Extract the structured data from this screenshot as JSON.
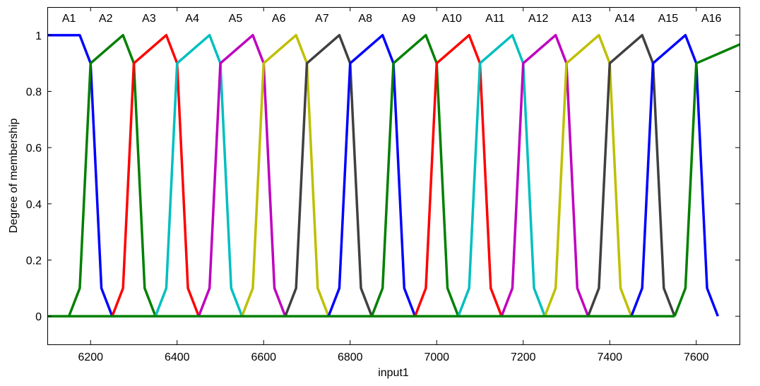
{
  "chart_data": {
    "type": "line",
    "xlabel": "input1",
    "ylabel": "Degree of membership",
    "xlim": [
      6100,
      7700
    ],
    "ylim": [
      -0.1,
      1.1
    ],
    "x_ticks": [
      6200,
      6400,
      6600,
      6800,
      7000,
      7200,
      7400,
      7600
    ],
    "y_ticks": [
      0,
      0.2,
      0.4,
      0.6,
      0.8,
      1
    ],
    "grid": false,
    "series": [
      {
        "name": "A1",
        "color": "#0000ff",
        "x": [
          6050,
          6175,
          6200,
          6225,
          6250
        ],
        "y": [
          1,
          1,
          0.9,
          0.1,
          0
        ]
      },
      {
        "name": "A2",
        "color": "#008000",
        "x": [
          6150,
          6175,
          6200,
          6275,
          6300,
          6325,
          6350
        ],
        "y": [
          0,
          0.1,
          0.9,
          1,
          0.9,
          0.1,
          0
        ]
      },
      {
        "name": "A3",
        "color": "#ff0000",
        "x": [
          6250,
          6275,
          6300,
          6375,
          6400,
          6425,
          6450
        ],
        "y": [
          0,
          0.1,
          0.9,
          1,
          0.9,
          0.1,
          0
        ]
      },
      {
        "name": "A4",
        "color": "#00bfbf",
        "x": [
          6350,
          6375,
          6400,
          6475,
          6500,
          6525,
          6550
        ],
        "y": [
          0,
          0.1,
          0.9,
          1,
          0.9,
          0.1,
          0
        ]
      },
      {
        "name": "A5",
        "color": "#bf00bf",
        "x": [
          6450,
          6475,
          6500,
          6575,
          6600,
          6625,
          6650
        ],
        "y": [
          0,
          0.1,
          0.9,
          1,
          0.9,
          0.1,
          0
        ]
      },
      {
        "name": "A6",
        "color": "#bfbf00",
        "x": [
          6550,
          6575,
          6600,
          6675,
          6700,
          6725,
          6750
        ],
        "y": [
          0,
          0.1,
          0.9,
          1,
          0.9,
          0.1,
          0
        ]
      },
      {
        "name": "A7",
        "color": "#404040",
        "x": [
          6650,
          6675,
          6700,
          6775,
          6800,
          6825,
          6850
        ],
        "y": [
          0,
          0.1,
          0.9,
          1,
          0.9,
          0.1,
          0
        ]
      },
      {
        "name": "A8",
        "color": "#0000ff",
        "x": [
          6750,
          6775,
          6800,
          6875,
          6900,
          6925,
          6950
        ],
        "y": [
          0,
          0.1,
          0.9,
          1,
          0.9,
          0.1,
          0
        ]
      },
      {
        "name": "A9",
        "color": "#008000",
        "x": [
          6850,
          6875,
          6900,
          6975,
          7000,
          7025,
          7050
        ],
        "y": [
          0,
          0.1,
          0.9,
          1,
          0.9,
          0.1,
          0
        ]
      },
      {
        "name": "A10",
        "color": "#ff0000",
        "x": [
          6950,
          6975,
          7000,
          7075,
          7100,
          7125,
          7150
        ],
        "y": [
          0,
          0.1,
          0.9,
          1,
          0.9,
          0.1,
          0
        ]
      },
      {
        "name": "A11",
        "color": "#00bfbf",
        "x": [
          7050,
          7075,
          7100,
          7175,
          7200,
          7225,
          7250
        ],
        "y": [
          0,
          0.1,
          0.9,
          1,
          0.9,
          0.1,
          0
        ]
      },
      {
        "name": "A12",
        "color": "#bf00bf",
        "x": [
          7150,
          7175,
          7200,
          7275,
          7300,
          7325,
          7350
        ],
        "y": [
          0,
          0.1,
          0.9,
          1,
          0.9,
          0.1,
          0
        ]
      },
      {
        "name": "A13",
        "color": "#bfbf00",
        "x": [
          7250,
          7275,
          7300,
          7375,
          7400,
          7425,
          7450
        ],
        "y": [
          0,
          0.1,
          0.9,
          1,
          0.9,
          0.1,
          0
        ]
      },
      {
        "name": "A14",
        "color": "#404040",
        "x": [
          7350,
          7375,
          7400,
          7475,
          7500,
          7525,
          7550
        ],
        "y": [
          0,
          0.1,
          0.9,
          1,
          0.9,
          0.1,
          0
        ]
      },
      {
        "name": "A15",
        "color": "#0000ff",
        "x": [
          7450,
          7475,
          7500,
          7575,
          7600,
          7625,
          7650
        ],
        "y": [
          0,
          0.1,
          0.9,
          1,
          0.9,
          0.1,
          0
        ]
      },
      {
        "name": "A16",
        "color": "#008000",
        "x": [
          7550,
          7575,
          7600,
          7750
        ],
        "y": [
          0,
          0.1,
          0.9,
          1
        ]
      }
    ],
    "label_positions": [
      6150,
      6235,
      6335,
      6435,
      6535,
      6635,
      6735,
      6835,
      6935,
      7035,
      7135,
      7235,
      7335,
      7435,
      7535,
      7635
    ]
  }
}
